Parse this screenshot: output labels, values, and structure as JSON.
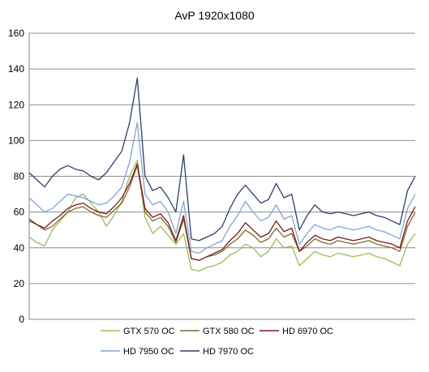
{
  "chart_data": {
    "type": "line",
    "title": "AvP 1920x1080",
    "xlabel": "",
    "ylabel": "",
    "ylim": [
      0,
      160
    ],
    "yticks": [
      "0",
      "20",
      "40",
      "60",
      "80",
      "100",
      "120",
      "140",
      "160"
    ],
    "grid": "horizontal",
    "legend_placement": "bottom",
    "x": [
      0,
      2,
      4,
      6,
      8,
      10,
      12,
      14,
      16,
      18,
      20,
      22,
      24,
      26,
      28,
      30,
      32,
      34,
      36,
      38,
      40,
      42,
      44,
      46,
      48,
      50,
      52,
      54,
      56,
      58,
      60,
      62,
      64,
      66,
      68,
      70,
      72,
      74,
      76,
      78,
      80,
      82,
      84,
      86,
      88,
      90,
      92,
      94,
      96,
      98,
      100
    ],
    "series": [
      {
        "name": "GTX 570 OC",
        "color": "#9BBB59",
        "values": [
          46,
          43,
          41,
          50,
          55,
          60,
          68,
          70,
          65,
          60,
          52,
          58,
          66,
          80,
          89,
          57,
          48,
          52,
          47,
          42,
          48,
          28,
          27,
          29,
          30,
          32,
          36,
          38,
          42,
          40,
          35,
          38,
          45,
          40,
          41,
          30,
          34,
          38,
          36,
          35,
          37,
          36,
          35,
          36,
          37,
          35,
          34,
          32,
          30,
          42,
          48
        ]
      },
      {
        "name": "GTX 580 OC",
        "color": "#7F6A2E",
        "values": [
          55,
          53,
          50,
          52,
          56,
          60,
          62,
          63,
          60,
          58,
          57,
          61,
          65,
          74,
          86,
          60,
          55,
          57,
          52,
          43,
          56,
          34,
          33,
          35,
          36,
          38,
          42,
          45,
          50,
          47,
          43,
          45,
          51,
          46,
          48,
          38,
          41,
          45,
          43,
          42,
          44,
          43,
          42,
          43,
          44,
          42,
          41,
          40,
          38,
          52,
          60
        ]
      },
      {
        "name": "HD 6970 OC",
        "color": "#7B1A1A",
        "values": [
          56,
          53,
          51,
          55,
          58,
          62,
          64,
          65,
          62,
          60,
          59,
          63,
          68,
          76,
          87,
          62,
          57,
          59,
          54,
          44,
          58,
          34,
          33,
          35,
          37,
          39,
          44,
          48,
          54,
          50,
          46,
          48,
          55,
          49,
          51,
          38,
          43,
          47,
          45,
          44,
          46,
          45,
          44,
          45,
          46,
          44,
          43,
          42,
          40,
          55,
          63
        ]
      },
      {
        "name": "HD 7950 OC",
        "color": "#7FA4D5",
        "values": [
          68,
          64,
          60,
          62,
          66,
          70,
          69,
          68,
          66,
          64,
          65,
          69,
          74,
          88,
          110,
          70,
          64,
          66,
          60,
          48,
          66,
          38,
          37,
          40,
          42,
          44,
          52,
          58,
          66,
          60,
          55,
          57,
          64,
          56,
          58,
          42,
          48,
          53,
          51,
          50,
          52,
          51,
          50,
          51,
          52,
          50,
          49,
          47,
          45,
          62,
          70
        ]
      },
      {
        "name": "HD 7970 OC",
        "color": "#2E3E6B",
        "values": [
          82,
          78,
          74,
          80,
          84,
          86,
          84,
          83,
          80,
          78,
          82,
          88,
          94,
          110,
          135,
          80,
          72,
          74,
          68,
          60,
          92,
          45,
          44,
          46,
          48,
          52,
          62,
          70,
          75,
          70,
          65,
          67,
          76,
          68,
          70,
          50,
          58,
          64,
          60,
          59,
          60,
          59,
          58,
          59,
          60,
          58,
          57,
          55,
          53,
          72,
          80
        ]
      }
    ]
  }
}
